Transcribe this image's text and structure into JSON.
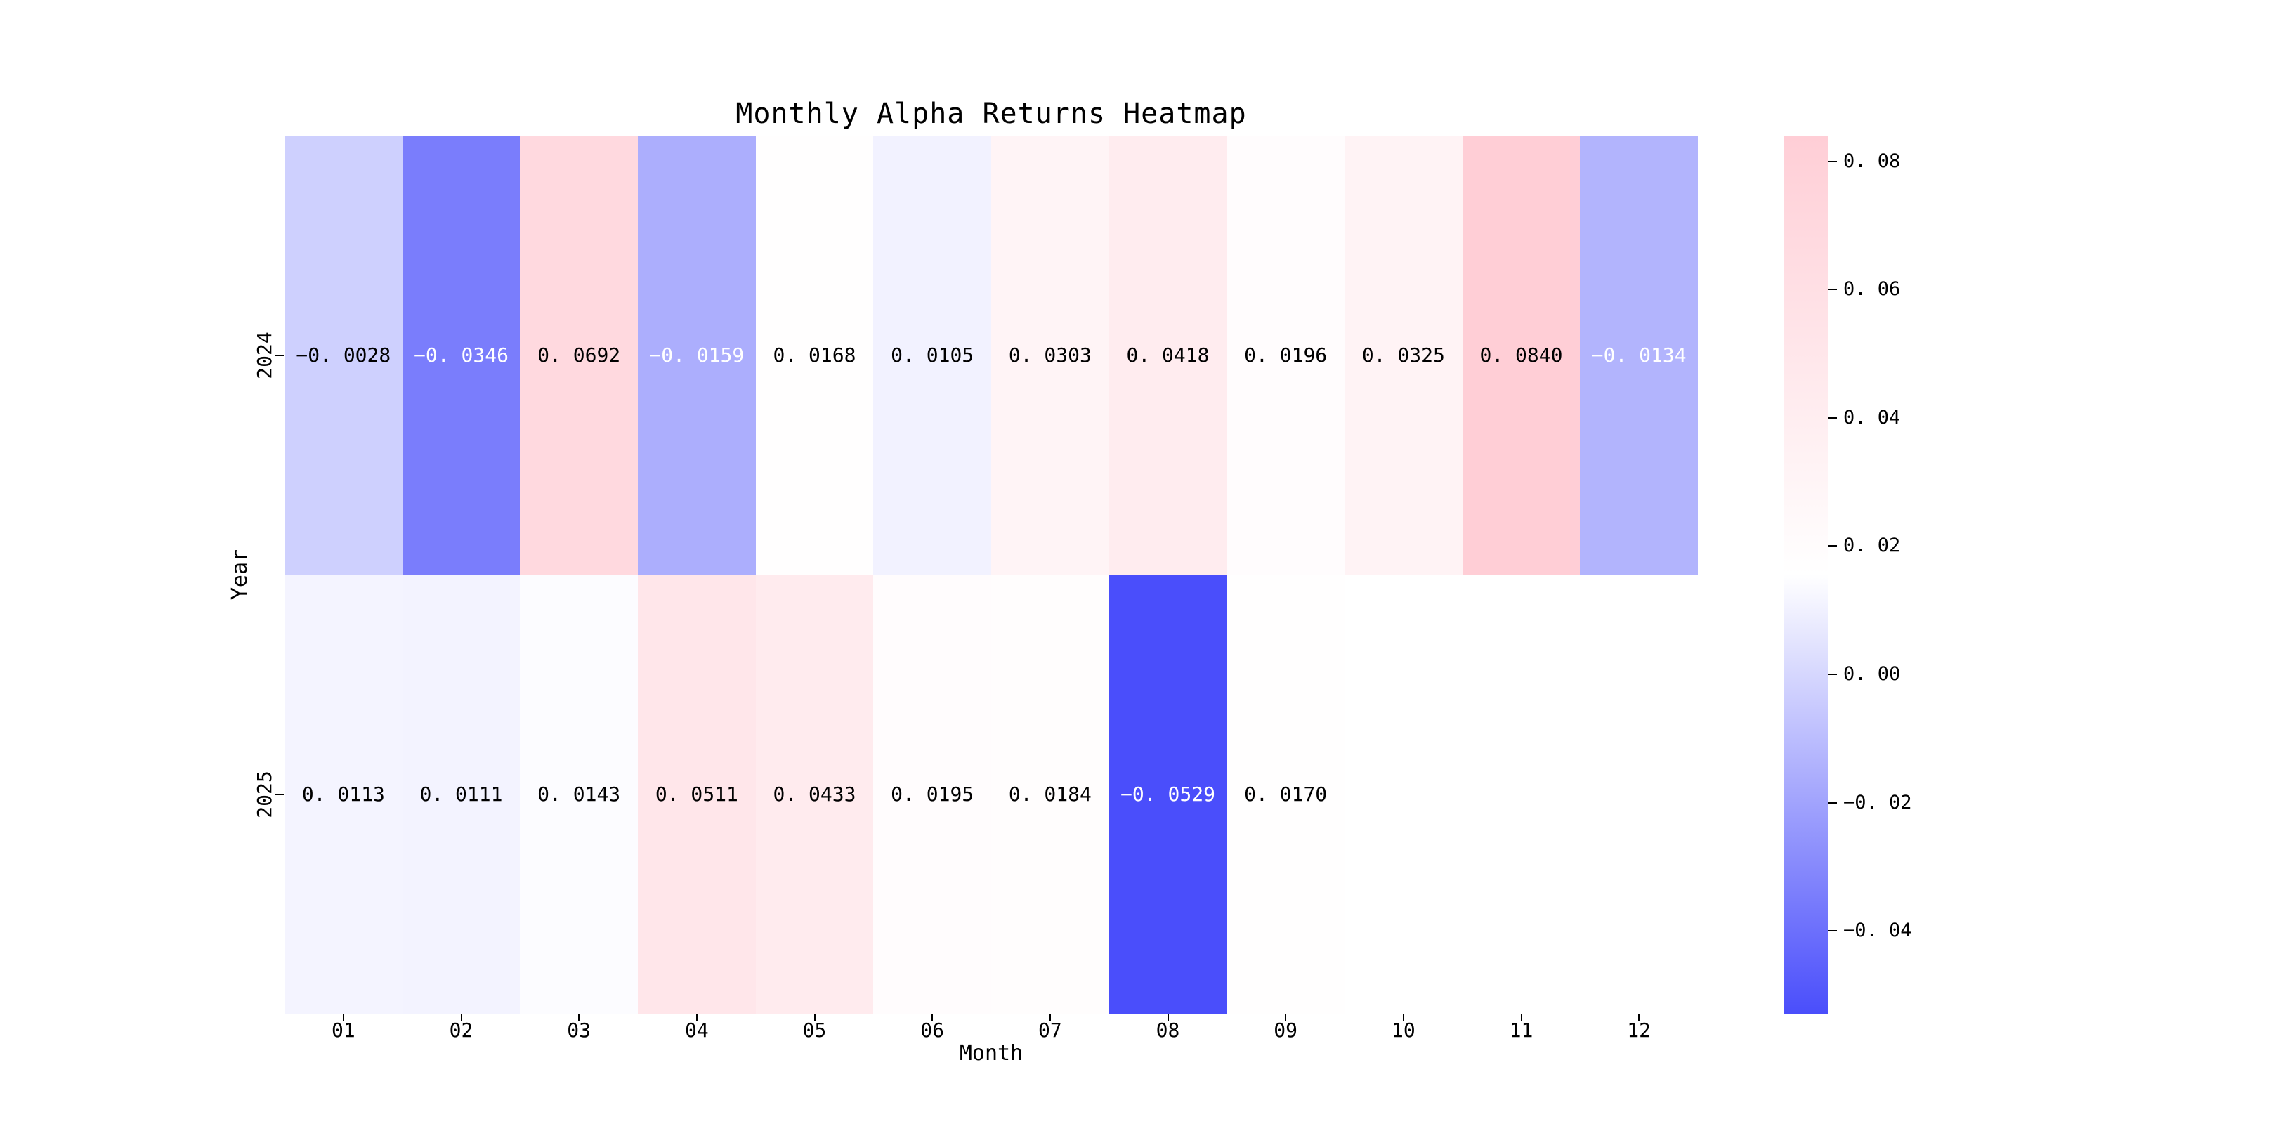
{
  "figure": {
    "background_color": "#ffffff",
    "text_color": "#000000"
  },
  "chart_data": {
    "type": "heatmap",
    "title": "Monthly Alpha Returns Heatmap",
    "xlabel": "Month",
    "ylabel": "Year",
    "x_categories": [
      "01",
      "02",
      "03",
      "04",
      "05",
      "06",
      "07",
      "08",
      "09",
      "10",
      "11",
      "12"
    ],
    "y_categories": [
      "2024",
      "2025"
    ],
    "series": [
      {
        "name": "2024",
        "values": [
          -0.0028,
          -0.0346,
          0.0692,
          -0.0159,
          0.0168,
          0.0105,
          0.0303,
          0.0418,
          0.0196,
          0.0325,
          0.084,
          -0.0134
        ]
      },
      {
        "name": "2025",
        "values": [
          0.0113,
          0.0111,
          0.0143,
          0.0511,
          0.0433,
          0.0195,
          0.0184,
          -0.0529,
          0.017,
          null,
          null,
          null
        ]
      }
    ],
    "value_format_decimals": 4,
    "vmin": -0.0529,
    "vmax": 0.084,
    "colorbar_ticks": [
      0.08,
      0.06,
      0.04,
      0.02,
      0.0,
      -0.02,
      -0.04
    ],
    "colorbar_tick_decimals": 2,
    "colors": {
      "negative_end": "#4A4EFB",
      "center": "#FFFFFF",
      "positive_end": "#FFCED6",
      "annotation_dark": "#000000",
      "annotation_light": "#FFFFFF"
    },
    "legend_position": "right-colorbar",
    "grid": false,
    "missing_cells": [
      "2025-10",
      "2025-11",
      "2025-12"
    ]
  }
}
